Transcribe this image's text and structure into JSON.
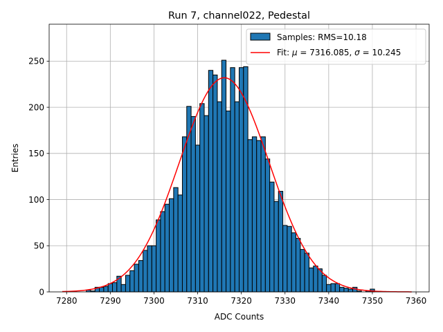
{
  "chart_data": {
    "type": "bar",
    "title": "Run 7, channel022, Pedestal",
    "xlabel": "ADC Counts",
    "ylabel": "Entries",
    "xlim": [
      7276,
      7363
    ],
    "ylim": [
      0,
      290
    ],
    "xticks": [
      7280,
      7290,
      7300,
      7310,
      7320,
      7330,
      7340,
      7350,
      7360
    ],
    "yticks": [
      0,
      50,
      100,
      150,
      200,
      250
    ],
    "grid": true,
    "legend_position": "top-right",
    "bin_width": 1,
    "bins": [
      {
        "x": 7285,
        "y": 2
      },
      {
        "x": 7286,
        "y": 1
      },
      {
        "x": 7287,
        "y": 5
      },
      {
        "x": 7288,
        "y": 5
      },
      {
        "x": 7289,
        "y": 6
      },
      {
        "x": 7290,
        "y": 9
      },
      {
        "x": 7291,
        "y": 10
      },
      {
        "x": 7292,
        "y": 17
      },
      {
        "x": 7293,
        "y": 8
      },
      {
        "x": 7294,
        "y": 18
      },
      {
        "x": 7295,
        "y": 23
      },
      {
        "x": 7296,
        "y": 30
      },
      {
        "x": 7297,
        "y": 34
      },
      {
        "x": 7298,
        "y": 45
      },
      {
        "x": 7299,
        "y": 50
      },
      {
        "x": 7300,
        "y": 50
      },
      {
        "x": 7301,
        "y": 78
      },
      {
        "x": 7302,
        "y": 87
      },
      {
        "x": 7303,
        "y": 95
      },
      {
        "x": 7304,
        "y": 101
      },
      {
        "x": 7305,
        "y": 113
      },
      {
        "x": 7306,
        "y": 105
      },
      {
        "x": 7307,
        "y": 168
      },
      {
        "x": 7308,
        "y": 201
      },
      {
        "x": 7309,
        "y": 190
      },
      {
        "x": 7310,
        "y": 159
      },
      {
        "x": 7311,
        "y": 204
      },
      {
        "x": 7312,
        "y": 191
      },
      {
        "x": 7313,
        "y": 240
      },
      {
        "x": 7314,
        "y": 235
      },
      {
        "x": 7315,
        "y": 206
      },
      {
        "x": 7316,
        "y": 251
      },
      {
        "x": 7317,
        "y": 196
      },
      {
        "x": 7318,
        "y": 243
      },
      {
        "x": 7319,
        "y": 206
      },
      {
        "x": 7320,
        "y": 243
      },
      {
        "x": 7321,
        "y": 244
      },
      {
        "x": 7322,
        "y": 165
      },
      {
        "x": 7323,
        "y": 168
      },
      {
        "x": 7324,
        "y": 164
      },
      {
        "x": 7325,
        "y": 168
      },
      {
        "x": 7326,
        "y": 144
      },
      {
        "x": 7327,
        "y": 119
      },
      {
        "x": 7328,
        "y": 98
      },
      {
        "x": 7329,
        "y": 109
      },
      {
        "x": 7330,
        "y": 72
      },
      {
        "x": 7331,
        "y": 71
      },
      {
        "x": 7332,
        "y": 64
      },
      {
        "x": 7333,
        "y": 58
      },
      {
        "x": 7334,
        "y": 46
      },
      {
        "x": 7335,
        "y": 42
      },
      {
        "x": 7336,
        "y": 26
      },
      {
        "x": 7337,
        "y": 28
      },
      {
        "x": 7338,
        "y": 25
      },
      {
        "x": 7339,
        "y": 18
      },
      {
        "x": 7340,
        "y": 8
      },
      {
        "x": 7341,
        "y": 9
      },
      {
        "x": 7342,
        "y": 9
      },
      {
        "x": 7343,
        "y": 5
      },
      {
        "x": 7344,
        "y": 4
      },
      {
        "x": 7345,
        "y": 3
      },
      {
        "x": 7346,
        "y": 5
      },
      {
        "x": 7347,
        "y": 1
      },
      {
        "x": 7349,
        "y": 1
      },
      {
        "x": 7350,
        "y": 3
      }
    ],
    "fit": {
      "type": "gaussian",
      "mu": 7316.085,
      "sigma": 10.245,
      "peak": 232,
      "x_range": [
        7279,
        7359
      ]
    },
    "series": [
      {
        "name": "Samples: RMS=10.18",
        "color": "#1f77b4",
        "kind": "histogram"
      },
      {
        "name": "Fit: μ = 7316.085, σ = 10.245",
        "color": "#ff0000",
        "kind": "line"
      }
    ],
    "legend": {
      "samples_label": "Samples: RMS=10.18",
      "fit_prefix": "Fit: ",
      "mu_symbol": "μ",
      "mu_value": " = 7316.085, ",
      "sigma_symbol": "σ",
      "sigma_value": " = 10.245"
    }
  }
}
